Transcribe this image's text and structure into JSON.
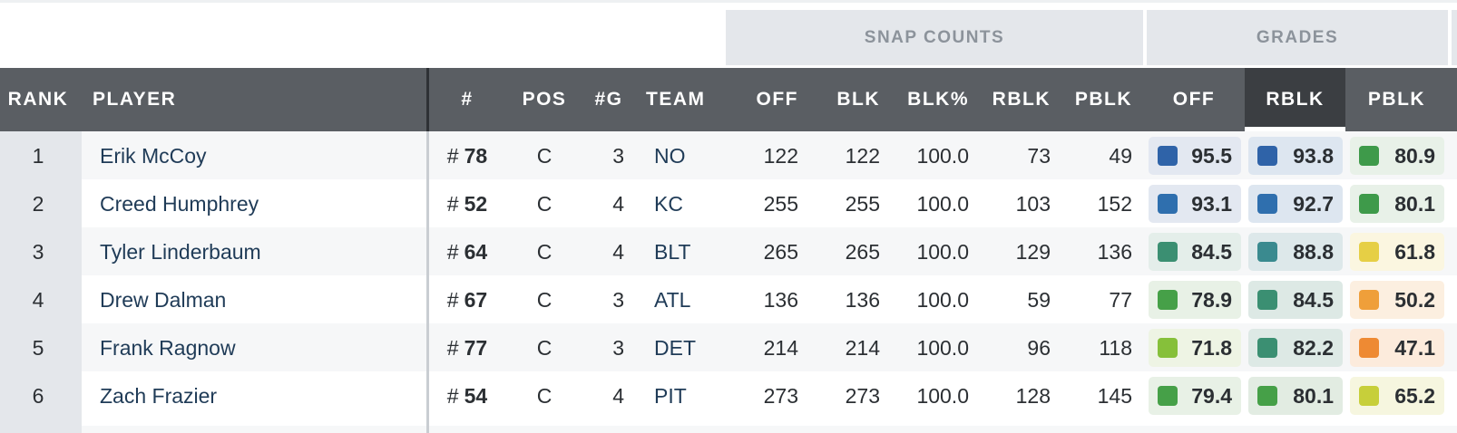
{
  "group_headers": {
    "snap_counts": "SNAP COUNTS",
    "grades": "GRADES"
  },
  "columns": {
    "rank": "RANK",
    "player": "PLAYER",
    "jersey": "#",
    "pos": "POS",
    "games": "#G",
    "team": "TEAM",
    "off": "OFF",
    "blk": "BLK",
    "blk_pct": "BLK%",
    "rblk": "RBLK",
    "pblk": "PBLK",
    "grade_off": "OFF",
    "grade_rblk": "RBLK",
    "grade_pblk": "PBLK"
  },
  "active_sort_column": "grade_rblk",
  "rows": [
    {
      "rank": "1",
      "player": "Erik McCoy",
      "hash": "#",
      "jersey": "78",
      "pos": "C",
      "games": "3",
      "team": "NO",
      "off": "122",
      "blk": "122",
      "blk_pct": "100.0",
      "rblk": "73",
      "pblk": "49",
      "grade_off": "95.5",
      "grade_off_color": "#2f63a8",
      "grade_off_bg": "#e3e8f1",
      "grade_rblk": "93.8",
      "grade_rblk_color": "#2f63a8",
      "grade_rblk_bg": "#dde6f0",
      "grade_pblk": "80.9",
      "grade_pblk_color": "#3e9a4a",
      "grade_pblk_bg": "#e8f1e8"
    },
    {
      "rank": "2",
      "player": "Creed Humphrey",
      "hash": "#",
      "jersey": "52",
      "pos": "C",
      "games": "4",
      "team": "KC",
      "off": "255",
      "blk": "255",
      "blk_pct": "100.0",
      "rblk": "103",
      "pblk": "152",
      "grade_off": "93.1",
      "grade_off_color": "#2f6fae",
      "grade_off_bg": "#e3e8f1",
      "grade_rblk": "92.7",
      "grade_rblk_color": "#2f6fae",
      "grade_rblk_bg": "#dde6f0",
      "grade_pblk": "80.1",
      "grade_pblk_color": "#3e9a4a",
      "grade_pblk_bg": "#e8f1e8"
    },
    {
      "rank": "3",
      "player": "Tyler Linderbaum",
      "hash": "#",
      "jersey": "64",
      "pos": "C",
      "games": "4",
      "team": "BLT",
      "off": "265",
      "blk": "265",
      "blk_pct": "100.0",
      "rblk": "129",
      "pblk": "136",
      "grade_off": "84.5",
      "grade_off_color": "#3b8f72",
      "grade_off_bg": "#e4eeea",
      "grade_rblk": "88.8",
      "grade_rblk_color": "#3a8a8f",
      "grade_rblk_bg": "#dde8ea",
      "grade_pblk": "61.8",
      "grade_pblk_color": "#e6cf45",
      "grade_pblk_bg": "#fbf6e0"
    },
    {
      "rank": "4",
      "player": "Drew Dalman",
      "hash": "#",
      "jersey": "67",
      "pos": "C",
      "games": "3",
      "team": "ATL",
      "off": "136",
      "blk": "136",
      "blk_pct": "100.0",
      "rblk": "59",
      "pblk": "77",
      "grade_off": "78.9",
      "grade_off_color": "#46a048",
      "grade_off_bg": "#e8f1e6",
      "grade_rblk": "84.5",
      "grade_rblk_color": "#3b8f72",
      "grade_rblk_bg": "#dde9e5",
      "grade_pblk": "50.2",
      "grade_pblk_color": "#ef9f3a",
      "grade_pblk_bg": "#fcefe0"
    },
    {
      "rank": "5",
      "player": "Frank Ragnow",
      "hash": "#",
      "jersey": "77",
      "pos": "C",
      "games": "3",
      "team": "DET",
      "off": "214",
      "blk": "214",
      "blk_pct": "100.0",
      "rblk": "96",
      "pblk": "118",
      "grade_off": "71.8",
      "grade_off_color": "#86c03a",
      "grade_off_bg": "#eef4e4",
      "grade_rblk": "82.2",
      "grade_rblk_color": "#3b8f72",
      "grade_rblk_bg": "#dde9e5",
      "grade_pblk": "47.1",
      "grade_pblk_color": "#ee8a33",
      "grade_pblk_bg": "#fcebdc"
    },
    {
      "rank": "6",
      "player": "Zach Frazier",
      "hash": "#",
      "jersey": "54",
      "pos": "C",
      "games": "4",
      "team": "PIT",
      "off": "273",
      "blk": "273",
      "blk_pct": "100.0",
      "rblk": "128",
      "pblk": "145",
      "grade_off": "79.4",
      "grade_off_color": "#46a048",
      "grade_off_bg": "#e8f1e6",
      "grade_rblk": "80.1",
      "grade_rblk_color": "#46a048",
      "grade_rblk_bg": "#e2ece2",
      "grade_pblk": "65.2",
      "grade_pblk_color": "#c7cf3a",
      "grade_pblk_bg": "#f6f6df"
    }
  ]
}
